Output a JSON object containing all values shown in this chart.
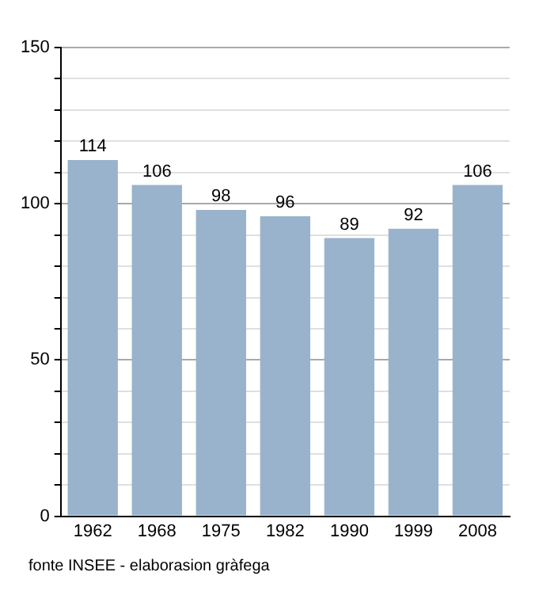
{
  "chart_data": {
    "type": "bar",
    "categories": [
      "1962",
      "1968",
      "1975",
      "1982",
      "1990",
      "1999",
      "2008"
    ],
    "values": [
      114,
      106,
      98,
      96,
      89,
      92,
      106
    ],
    "color": "#99b3cc",
    "data_labels": true,
    "grid": "y",
    "legend": false,
    "ylim": [
      0,
      150
    ],
    "yticks": [
      0,
      {
        "value": 10,
        "label": null
      },
      {
        "value": 20,
        "label": null
      },
      {
        "value": 30,
        "label": null
      },
      {
        "value": 40,
        "label": null
      },
      50,
      {
        "value": 60,
        "label": null
      },
      {
        "value": 70,
        "label": null
      },
      {
        "value": 80,
        "label": null
      },
      {
        "value": 90,
        "label": null
      },
      100,
      {
        "value": 110,
        "label": null
      },
      {
        "value": 120,
        "label": null
      },
      {
        "value": 130,
        "label": null
      },
      {
        "value": 140,
        "label": null
      },
      150
    ],
    "annotations": [
      "fonte INSEE - elaborasion gràfega"
    ]
  }
}
